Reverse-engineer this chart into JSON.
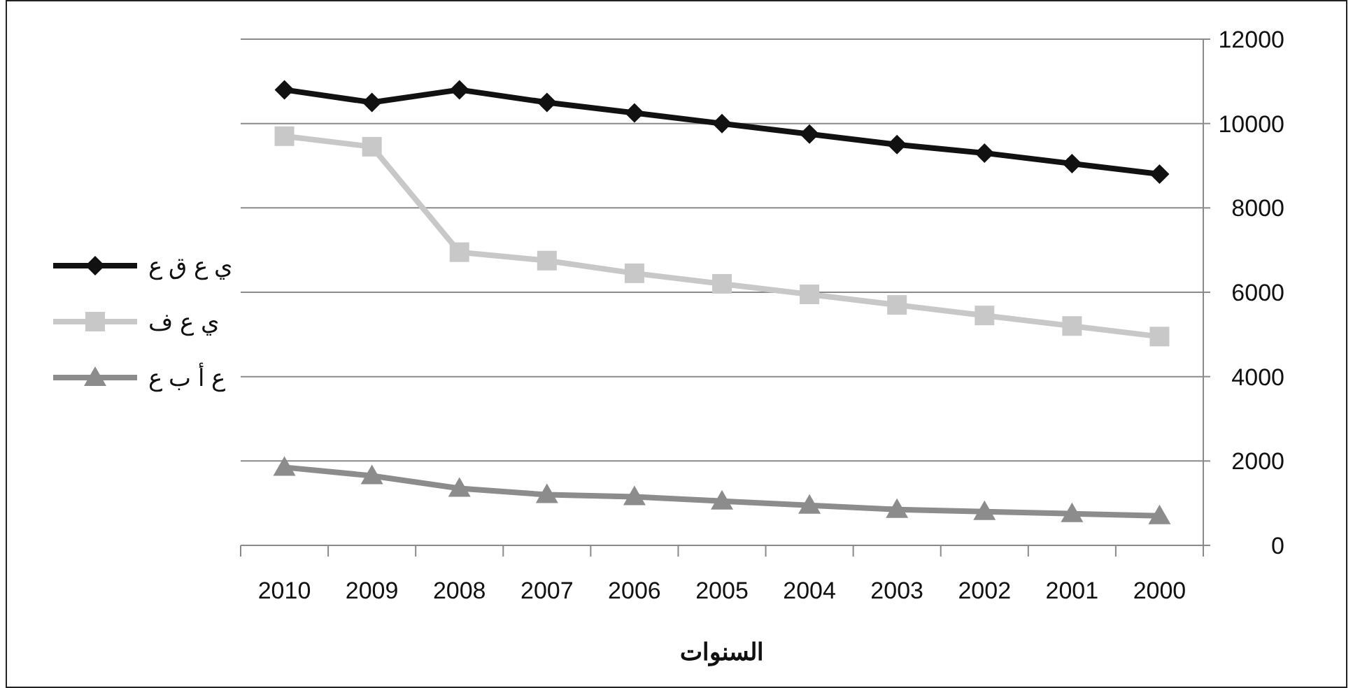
{
  "chart_data": {
    "type": "line",
    "xlabel": "السنوات",
    "categories": [
      "2010",
      "2009",
      "2008",
      "2007",
      "2006",
      "2005",
      "2004",
      "2003",
      "2002",
      "2001",
      "2000"
    ],
    "series": [
      {
        "name": "ي ع ق ع",
        "color": "#111111",
        "marker": "diamond",
        "values": [
          10800,
          10500,
          10800,
          10500,
          10250,
          10000,
          9750,
          9500,
          9300,
          9050,
          8800
        ]
      },
      {
        "name": "ي ع ف",
        "color": "#c8c8c8",
        "marker": "square",
        "values": [
          9700,
          9450,
          6950,
          6750,
          6450,
          6200,
          5950,
          5700,
          5450,
          5200,
          4950
        ]
      },
      {
        "name": "ع أ ب ع",
        "color": "#8c8c8c",
        "marker": "triangle",
        "values": [
          1850,
          1650,
          1350,
          1200,
          1150,
          1050,
          950,
          850,
          800,
          750,
          700
        ]
      }
    ],
    "ylim": [
      0,
      12000
    ],
    "yticks": [
      0,
      2000,
      4000,
      6000,
      8000,
      10000,
      12000
    ],
    "grid": "y",
    "legend": "left"
  }
}
